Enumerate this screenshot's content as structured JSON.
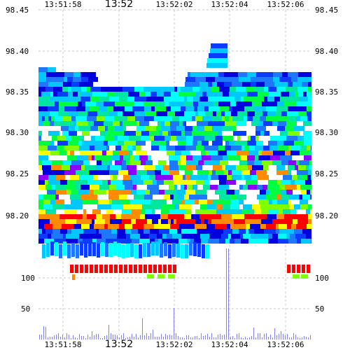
{
  "chart_data": {
    "type": "heatmap",
    "x_ticks": [
      {
        "label": "13:51:58",
        "major": false
      },
      {
        "label": "13:52",
        "major": true
      },
      {
        "label": "13:52:02",
        "major": false
      },
      {
        "label": "13:52:04",
        "major": false
      },
      {
        "label": "13:52:06",
        "major": false
      }
    ],
    "y_price_ticks": [
      "98.45",
      "98.40",
      "98.35",
      "98.30",
      "98.25",
      "98.20"
    ],
    "y_price_range": [
      98.16,
      98.45
    ],
    "y_volume_ticks": [
      "100",
      "50"
    ],
    "volume_range": [
      0,
      130
    ],
    "colors": {
      "dark_blue": "#0000dd",
      "blue": "#0a3cff",
      "mid_blue": "#1e78ff",
      "light_blue": "#00c8ff",
      "cyan": "#00ffff",
      "teal": "#00e6a0",
      "green": "#00ff40",
      "light_green": "#7fff00",
      "yellow": "#ffff00",
      "orange": "#ff8c00",
      "red": "#ff0000",
      "purple": "#8c00ff",
      "volume_bars": "#8080ff"
    },
    "grid": true
  }
}
